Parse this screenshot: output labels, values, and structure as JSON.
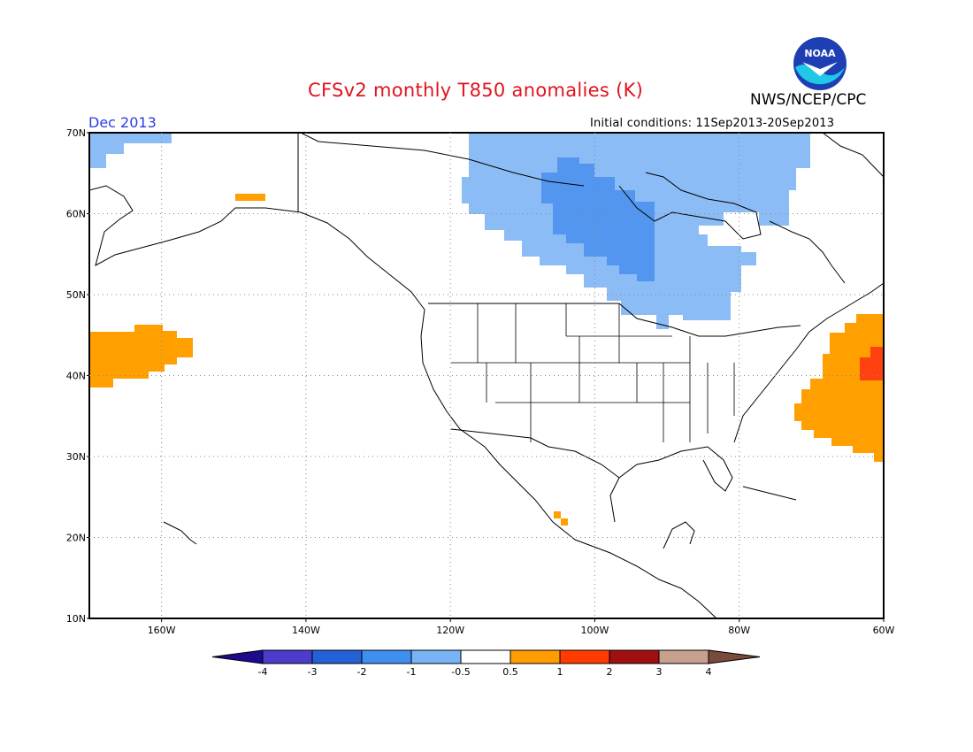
{
  "header": {
    "title": "CFSv2 monthly T850 anomalies (K)",
    "agency": "NWS/NCEP/CPC",
    "valid_month": "Dec 2013",
    "initial_conditions": "Initial conditions: 11Sep2013-20Sep2013",
    "logo_text": "NOAA"
  },
  "map": {
    "lon_range": [
      -170,
      -60
    ],
    "lat_range": [
      10,
      70
    ],
    "lat_ticks": [
      "10N",
      "20N",
      "30N",
      "40N",
      "50N",
      "60N",
      "70N"
    ],
    "lon_ticks": [
      "160W",
      "140W",
      "120W",
      "100W",
      "80W",
      "60W"
    ],
    "grid": true
  },
  "colorbar": {
    "labels": [
      "-4",
      "-3",
      "-2",
      "-1",
      "-0.5",
      "0.5",
      "1",
      "2",
      "3",
      "4"
    ],
    "colors": [
      "#1e0a8c",
      "#4c3ccc",
      "#2461d8",
      "#3f8ff0",
      "#78b4f5",
      "#ffffff",
      "#ff9c00",
      "#ff3c00",
      "#a01010",
      "#c8a090",
      "#7a4a3a"
    ]
  },
  "anomaly_colors": {
    "light_blue": "#8cbcf5",
    "medium_blue": "#5296ef",
    "orange": "#ffa000",
    "red": "#ff4010"
  }
}
